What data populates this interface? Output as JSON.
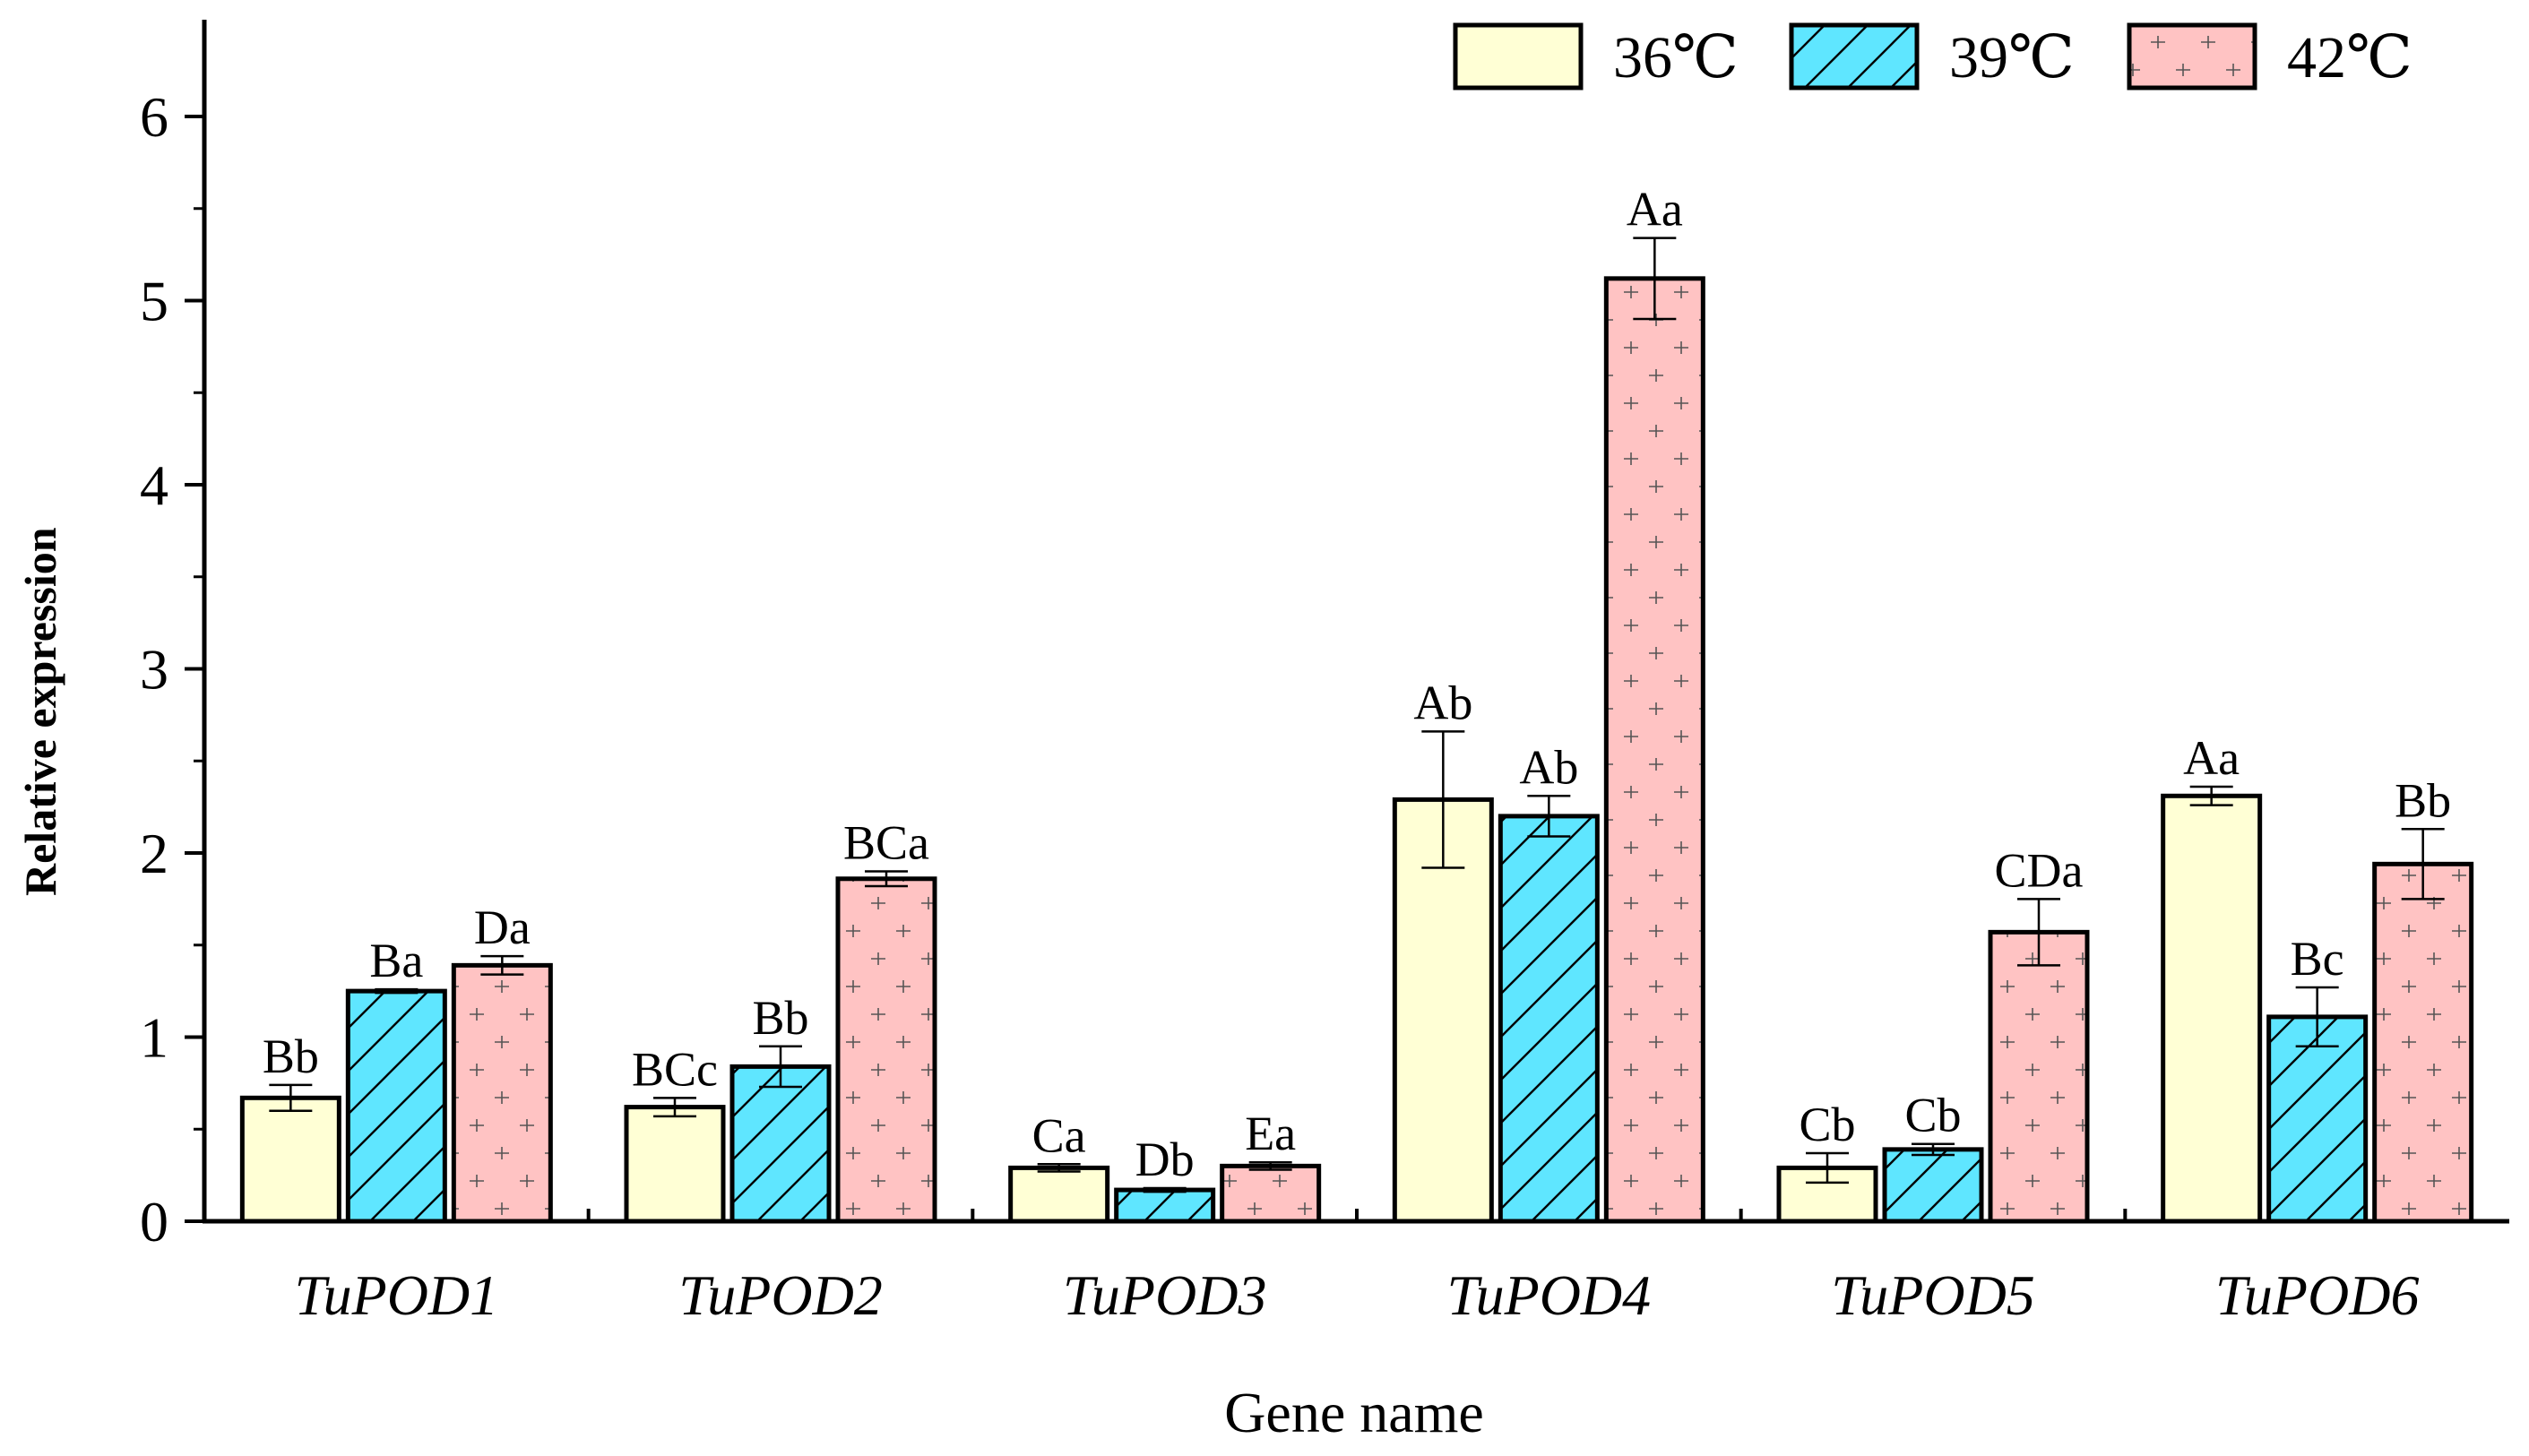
{
  "chart_data": {
    "type": "bar",
    "title": "",
    "xlabel": "Gene name",
    "ylabel": "Relative expression",
    "ylim": [
      0,
      6.5
    ],
    "yticks": [
      0,
      1,
      2,
      3,
      4,
      5,
      6
    ],
    "grid": false,
    "legend_position": "top-right",
    "categories": [
      "TuPOD1",
      "TuPOD2",
      "TuPOD3",
      "TuPOD4",
      "TuPOD5",
      "TuPOD6"
    ],
    "series": [
      {
        "name": "36℃",
        "color": "#ffffd5",
        "pattern": "none",
        "values": [
          0.67,
          0.62,
          0.29,
          2.29,
          0.29,
          2.31
        ],
        "errors": [
          0.07,
          0.05,
          0.02,
          0.37,
          0.08,
          0.05
        ],
        "labels": [
          "Bb",
          "BCc",
          "Ca",
          "Ab",
          "Cb",
          "Aa"
        ]
      },
      {
        "name": "39℃",
        "color": "#5fe6ff",
        "pattern": "diagonal",
        "values": [
          1.25,
          0.84,
          0.17,
          2.2,
          0.39,
          1.11
        ],
        "errors": [
          0.01,
          0.11,
          0.01,
          0.11,
          0.03,
          0.16
        ],
        "labels": [
          "Ba",
          "Bb",
          "Db",
          "Ab",
          "Cb",
          "Bc"
        ]
      },
      {
        "name": "42℃",
        "color": "#ffc3c3",
        "pattern": "plus",
        "values": [
          1.39,
          1.86,
          0.3,
          5.12,
          1.57,
          1.94
        ],
        "errors": [
          0.05,
          0.04,
          0.02,
          0.22,
          0.18,
          0.19
        ],
        "labels": [
          "Da",
          "BCa",
          "Ea",
          "Aa",
          "CDa",
          "Bb"
        ]
      }
    ]
  }
}
